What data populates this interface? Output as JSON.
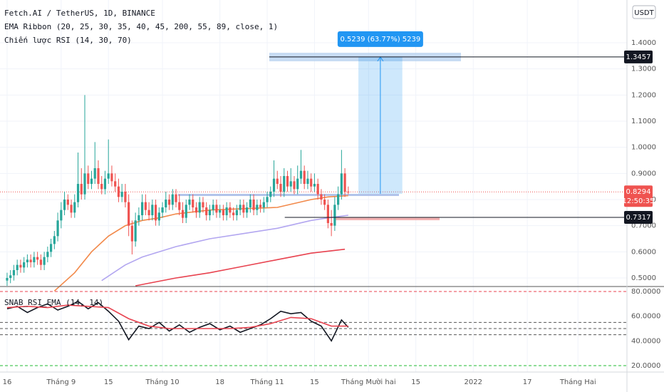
{
  "chart_data": [
    {
      "type": "candlestick",
      "title": "Fetch.AI / TetherUS, 1D, BINANCE",
      "indicators": [
        "EMA Ribbon (20, 25, 30, 35, 40, 45, 200, 55, 89, close, 1)",
        "Chiến lược RSI (14, 30, 70)"
      ],
      "currency": "USDT",
      "up_color": "#26a69a",
      "down_color": "#ef5350",
      "x": [
        0,
        1,
        2,
        3,
        4,
        5,
        6,
        7,
        8,
        9,
        10,
        11,
        12,
        13,
        14,
        15,
        16,
        17,
        18,
        19,
        20,
        21,
        22,
        23,
        24,
        25,
        26,
        27,
        28,
        29,
        30,
        31,
        32,
        33,
        34,
        35,
        36,
        37,
        38,
        39,
        40,
        41,
        42,
        43,
        44,
        45,
        46,
        47,
        48,
        49,
        50,
        51,
        52,
        53,
        54,
        55,
        56,
        57,
        58,
        59,
        60,
        61,
        62,
        63,
        64,
        65,
        66,
        67,
        68,
        69,
        70,
        71,
        72,
        73,
        74,
        75,
        76,
        77,
        78,
        79,
        80,
        81,
        82,
        83,
        84,
        85,
        86,
        87,
        88,
        89,
        90,
        91,
        92,
        93,
        94,
        95,
        96,
        97,
        98,
        99,
        100,
        101
      ],
      "open": [
        0.49,
        0.5,
        0.51,
        0.53,
        0.55,
        0.54,
        0.56,
        0.57,
        0.56,
        0.58,
        0.57,
        0.55,
        0.58,
        0.6,
        0.63,
        0.66,
        0.72,
        0.76,
        0.8,
        0.78,
        0.75,
        0.79,
        0.86,
        0.82,
        0.9,
        0.86,
        0.88,
        0.92,
        0.86,
        0.84,
        0.88,
        0.9,
        0.87,
        0.85,
        0.81,
        0.83,
        0.79,
        0.7,
        0.64,
        0.72,
        0.74,
        0.79,
        0.76,
        0.74,
        0.78,
        0.72,
        0.75,
        0.77,
        0.8,
        0.78,
        0.82,
        0.79,
        0.76,
        0.73,
        0.78,
        0.8,
        0.77,
        0.75,
        0.79,
        0.77,
        0.74,
        0.76,
        0.78,
        0.75,
        0.76,
        0.74,
        0.77,
        0.75,
        0.74,
        0.76,
        0.78,
        0.75,
        0.77,
        0.8,
        0.76,
        0.78,
        0.77,
        0.79,
        0.81,
        0.83,
        0.88,
        0.86,
        0.83,
        0.89,
        0.85,
        0.87,
        0.84,
        0.88,
        0.91,
        0.86,
        0.88,
        0.85,
        0.86,
        0.82,
        0.8,
        0.78,
        0.71,
        0.7,
        0.78,
        0.82,
        0.9,
        0.83
      ],
      "high": [
        0.52,
        0.53,
        0.55,
        0.57,
        0.57,
        0.58,
        0.59,
        0.59,
        0.6,
        0.6,
        0.59,
        0.6,
        0.62,
        0.65,
        0.68,
        0.75,
        0.79,
        0.83,
        0.82,
        0.8,
        0.82,
        0.98,
        0.92,
        1.2,
        0.93,
        0.91,
        1.02,
        0.95,
        0.89,
        0.91,
        1.03,
        0.93,
        0.9,
        0.88,
        0.86,
        0.86,
        0.82,
        0.72,
        0.75,
        0.77,
        0.82,
        0.82,
        0.79,
        0.8,
        0.8,
        0.77,
        0.79,
        0.83,
        0.82,
        0.84,
        0.84,
        0.82,
        0.79,
        0.8,
        0.82,
        0.82,
        0.79,
        0.81,
        0.81,
        0.79,
        0.78,
        0.8,
        0.8,
        0.78,
        0.78,
        0.79,
        0.79,
        0.77,
        0.78,
        0.8,
        0.8,
        0.79,
        0.82,
        0.82,
        0.8,
        0.8,
        0.81,
        0.83,
        0.85,
        0.95,
        0.91,
        0.89,
        0.92,
        0.91,
        0.92,
        0.89,
        0.93,
        0.99,
        0.93,
        0.91,
        0.9,
        0.9,
        0.88,
        0.84,
        0.82,
        0.8,
        0.76,
        0.81,
        0.85,
        0.99,
        0.92,
        0.85
      ],
      "low": [
        0.47,
        0.48,
        0.49,
        0.51,
        0.52,
        0.52,
        0.54,
        0.54,
        0.54,
        0.55,
        0.53,
        0.53,
        0.56,
        0.58,
        0.61,
        0.64,
        0.69,
        0.74,
        0.76,
        0.73,
        0.73,
        0.77,
        0.8,
        0.8,
        0.84,
        0.84,
        0.86,
        0.84,
        0.82,
        0.82,
        0.86,
        0.85,
        0.83,
        0.79,
        0.79,
        0.77,
        0.66,
        0.59,
        0.62,
        0.7,
        0.72,
        0.74,
        0.72,
        0.72,
        0.7,
        0.7,
        0.73,
        0.75,
        0.76,
        0.76,
        0.77,
        0.74,
        0.71,
        0.71,
        0.76,
        0.75,
        0.73,
        0.73,
        0.75,
        0.72,
        0.72,
        0.74,
        0.73,
        0.73,
        0.72,
        0.72,
        0.73,
        0.72,
        0.72,
        0.74,
        0.73,
        0.73,
        0.75,
        0.74,
        0.74,
        0.75,
        0.75,
        0.77,
        0.79,
        0.81,
        0.84,
        0.81,
        0.81,
        0.83,
        0.83,
        0.82,
        0.82,
        0.86,
        0.84,
        0.84,
        0.83,
        0.83,
        0.8,
        0.78,
        0.76,
        0.69,
        0.66,
        0.68,
        0.76,
        0.8,
        0.81,
        0.82
      ],
      "close": [
        0.5,
        0.51,
        0.53,
        0.55,
        0.54,
        0.56,
        0.57,
        0.56,
        0.58,
        0.57,
        0.55,
        0.58,
        0.6,
        0.63,
        0.66,
        0.72,
        0.76,
        0.8,
        0.78,
        0.75,
        0.79,
        0.86,
        0.82,
        0.9,
        0.86,
        0.88,
        0.92,
        0.86,
        0.84,
        0.88,
        0.9,
        0.87,
        0.85,
        0.81,
        0.83,
        0.79,
        0.7,
        0.64,
        0.72,
        0.74,
        0.79,
        0.76,
        0.74,
        0.78,
        0.72,
        0.75,
        0.77,
        0.8,
        0.78,
        0.82,
        0.79,
        0.76,
        0.73,
        0.78,
        0.8,
        0.77,
        0.75,
        0.79,
        0.77,
        0.74,
        0.76,
        0.78,
        0.75,
        0.76,
        0.74,
        0.77,
        0.75,
        0.74,
        0.76,
        0.78,
        0.75,
        0.77,
        0.8,
        0.76,
        0.78,
        0.77,
        0.79,
        0.81,
        0.83,
        0.88,
        0.86,
        0.83,
        0.89,
        0.85,
        0.87,
        0.84,
        0.88,
        0.91,
        0.86,
        0.88,
        0.85,
        0.86,
        0.82,
        0.8,
        0.78,
        0.71,
        0.7,
        0.78,
        0.82,
        0.9,
        0.83,
        0.8294
      ],
      "lines": [
        {
          "color": "#f2894a",
          "x": [
            14,
            20,
            25,
            30,
            35,
            40,
            45,
            50,
            60,
            70,
            80,
            90,
            95,
            101
          ],
          "values": [
            0.45,
            0.52,
            0.6,
            0.66,
            0.7,
            0.72,
            0.73,
            0.745,
            0.76,
            0.765,
            0.77,
            0.8,
            0.81,
            0.815
          ]
        },
        {
          "color": "#b2a6f0",
          "x": [
            28,
            35,
            40,
            50,
            60,
            70,
            80,
            90,
            95,
            101
          ],
          "values": [
            0.49,
            0.55,
            0.58,
            0.62,
            0.65,
            0.67,
            0.69,
            0.72,
            0.73,
            0.74
          ]
        },
        {
          "color": "#e8424f",
          "x": [
            38,
            50,
            60,
            70,
            80,
            90,
            100
          ],
          "values": [
            0.47,
            0.5,
            0.52,
            0.545,
            0.57,
            0.595,
            0.61
          ]
        }
      ],
      "xlim": [
        -2.1,
        183.5
      ],
      "ylim": [
        0.4727,
        1.5636
      ],
      "yticks": [
        {
          "value": 0.5,
          "label": "0.5000"
        },
        {
          "value": 0.6,
          "label": "0.6000"
        },
        {
          "value": 0.7,
          "label": "0.7000"
        },
        {
          "value": 0.8,
          "label": "0.8000"
        },
        {
          "value": 0.9,
          "label": "0.9000"
        },
        {
          "value": 1.0,
          "label": "1.0000"
        },
        {
          "value": 1.1,
          "label": "1.1000"
        },
        {
          "value": 1.2,
          "label": "1.2000"
        },
        {
          "value": 1.3,
          "label": "1.3000"
        },
        {
          "value": 1.4,
          "label": "1.4000"
        }
      ],
      "xticks": [
        {
          "value": 0,
          "label": "16"
        },
        {
          "value": 16,
          "label": "Tháng 9"
        },
        {
          "value": 30,
          "label": "15"
        },
        {
          "value": 46,
          "label": "Tháng 10"
        },
        {
          "value": 63,
          "label": "18"
        },
        {
          "value": 77,
          "label": "Tháng 11"
        },
        {
          "value": 91,
          "label": "15"
        },
        {
          "value": 107,
          "label": "Tháng Mười hai"
        },
        {
          "value": 121,
          "label": "15"
        },
        {
          "value": 138,
          "label": "2022"
        },
        {
          "value": 154,
          "label": "17"
        },
        {
          "value": 169,
          "label": "Tháng Hai"
        }
      ],
      "grid": true,
      "price_lines": [
        {
          "value": 1.3457,
          "label": "1.3457",
          "x_from": 77.6
        },
        {
          "value": 0.7317,
          "label": "0.7317",
          "x_from": 82.2
        }
      ],
      "current_price": {
        "value": 0.8294,
        "label": "0.8294",
        "countdown": "12:50:35"
      },
      "measure": {
        "x": [
          104,
          117
        ],
        "y": [
          0.8218,
          1.3457
        ],
        "label": "0.5239 (63.77%) 5239"
      }
    },
    {
      "type": "line",
      "title": "SNAB_RSI_EMA (14, 14)",
      "lines": [
        {
          "color": "#131722",
          "x": [
            0,
            3,
            6,
            9,
            12,
            15,
            18,
            21,
            24,
            27,
            30,
            33,
            36,
            39,
            42,
            45,
            48,
            51,
            54,
            57,
            60,
            63,
            66,
            69,
            72,
            75,
            78,
            81,
            84,
            87,
            90,
            93,
            96,
            99,
            101
          ],
          "values": [
            66,
            68,
            63,
            67,
            70,
            65,
            68,
            72,
            66,
            71,
            64,
            56,
            41,
            52,
            50,
            55,
            48,
            53,
            47,
            51,
            54,
            49,
            52,
            47,
            50,
            53,
            58,
            64,
            62,
            63,
            56,
            52,
            40,
            57,
            51
          ]
        },
        {
          "color": "#e8424f",
          "x": [
            0,
            6,
            12,
            18,
            24,
            30,
            36,
            42,
            48,
            54,
            60,
            66,
            72,
            78,
            84,
            90,
            96,
            101
          ],
          "values": [
            67,
            68,
            67,
            69,
            68,
            67,
            58,
            52,
            50,
            50,
            50,
            50,
            51,
            54,
            59,
            58,
            52,
            52
          ]
        }
      ],
      "hlines": [
        {
          "value": 80,
          "color": "#e8424f"
        },
        {
          "value": 55,
          "color": "#555555"
        },
        {
          "value": 50,
          "color": "#555555"
        },
        {
          "value": 45,
          "color": "#555555"
        },
        {
          "value": 20,
          "color": "#22bb33"
        }
      ],
      "xlim": [
        -2.1,
        183.5
      ],
      "ylim": [
        14.81,
        84.04
      ],
      "yticks": [
        {
          "value": 80,
          "label": "80.0000"
        },
        {
          "value": 60,
          "label": "60.0000"
        },
        {
          "value": 40,
          "label": "40.0000"
        },
        {
          "value": 20,
          "label": "20.0000"
        }
      ]
    }
  ]
}
